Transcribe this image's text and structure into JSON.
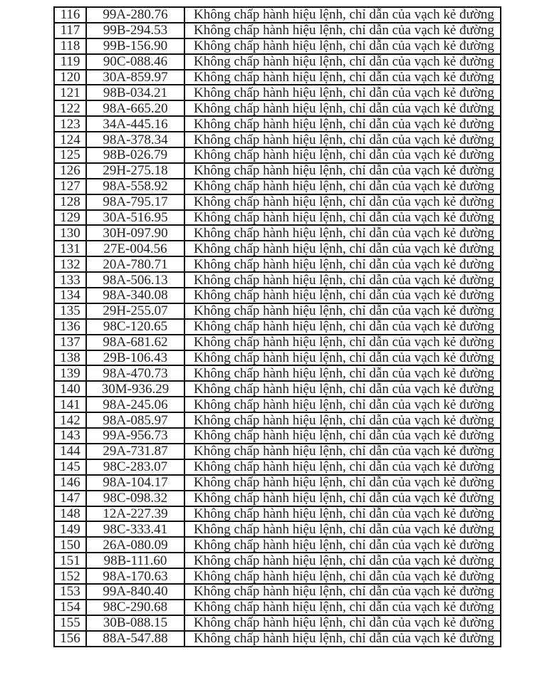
{
  "violation_text": "Không chấp hành hiệu lệnh, chỉ dẫn của vạch kẻ đường",
  "rows": [
    {
      "no": "116",
      "plate": "99A-280.76"
    },
    {
      "no": "117",
      "plate": "99B-294.53"
    },
    {
      "no": "118",
      "plate": "99B-156.90"
    },
    {
      "no": "119",
      "plate": "90C-088.46"
    },
    {
      "no": "120",
      "plate": "30A-859.97"
    },
    {
      "no": "121",
      "plate": "98B-034.21"
    },
    {
      "no": "122",
      "plate": "98A-665.20"
    },
    {
      "no": "123",
      "plate": "34A-445.16"
    },
    {
      "no": "124",
      "plate": "98A-378.34"
    },
    {
      "no": "125",
      "plate": "98B-026.79"
    },
    {
      "no": "126",
      "plate": "29H-275.18"
    },
    {
      "no": "127",
      "plate": "98A-558.92"
    },
    {
      "no": "128",
      "plate": "98A-795.17"
    },
    {
      "no": "129",
      "plate": "30A-516.95"
    },
    {
      "no": "130",
      "plate": "30H-097.90"
    },
    {
      "no": "131",
      "plate": "27E-004.56"
    },
    {
      "no": "132",
      "plate": "20A-780.71"
    },
    {
      "no": "133",
      "plate": "98A-506.13"
    },
    {
      "no": "134",
      "plate": "98A-340.08"
    },
    {
      "no": "135",
      "plate": "29H-255.07"
    },
    {
      "no": "136",
      "plate": "98C-120.65"
    },
    {
      "no": "137",
      "plate": "98A-681.62"
    },
    {
      "no": "138",
      "plate": "29B-106.43"
    },
    {
      "no": "139",
      "plate": "98A-470.73"
    },
    {
      "no": "140",
      "plate": "30M-936.29"
    },
    {
      "no": "141",
      "plate": "98A-245.06"
    },
    {
      "no": "142",
      "plate": "98A-085.97"
    },
    {
      "no": "143",
      "plate": "99A-956.73"
    },
    {
      "no": "144",
      "plate": "29A-731.87"
    },
    {
      "no": "145",
      "plate": "98C-283.07"
    },
    {
      "no": "146",
      "plate": "98A-104.17"
    },
    {
      "no": "147",
      "plate": "98C-098.32"
    },
    {
      "no": "148",
      "plate": "12A-227.39"
    },
    {
      "no": "149",
      "plate": "98C-333.41"
    },
    {
      "no": "150",
      "plate": "26A-080.09"
    },
    {
      "no": "151",
      "plate": "98B-111.60"
    },
    {
      "no": "152",
      "plate": "98A-170.63"
    },
    {
      "no": "153",
      "plate": "99A-840.40"
    },
    {
      "no": "154",
      "plate": "98C-290.68"
    },
    {
      "no": "155",
      "plate": "30B-088.15"
    },
    {
      "no": "156",
      "plate": "88A-547.88"
    }
  ]
}
